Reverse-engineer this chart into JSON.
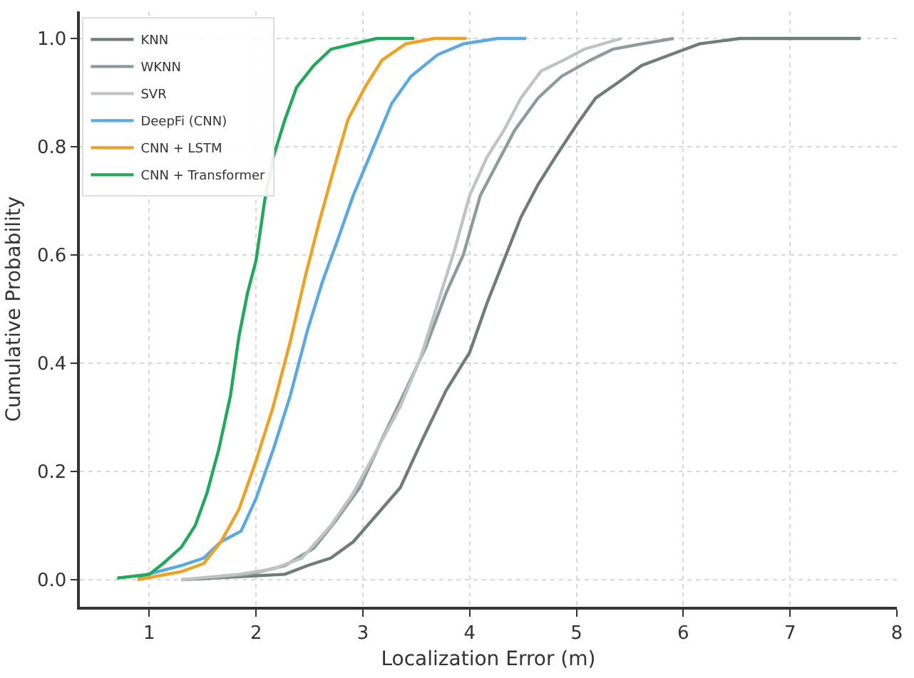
{
  "chart_data": {
    "type": "line",
    "xlabel": "Localization Error (m)",
    "ylabel": "Cumulative Probability",
    "xlim": [
      0.35,
      8
    ],
    "xticks": [
      1,
      2,
      3,
      4,
      5,
      6,
      7,
      8
    ],
    "ylim": [
      -0.05,
      1.05
    ],
    "yticks": [
      {
        "value": 0,
        "label": "0.0"
      },
      {
        "value": 0.2,
        "label": "0.2"
      },
      {
        "value": 0.4,
        "label": "0.4"
      },
      {
        "value": 0.6,
        "label": "0.6"
      },
      {
        "value": 0.8,
        "label": "0.8"
      },
      {
        "value": 1,
        "label": "1.0"
      }
    ],
    "grid": true,
    "legend": "top left",
    "marker": "none",
    "line_style": "solid",
    "series": [
      {
        "name": "KNN",
        "color": "#6f7c79",
        "x": [
          1.3,
          2.27,
          2.48,
          2.7,
          2.91,
          3.13,
          3.35,
          3.56,
          3.78,
          4.0,
          4.16,
          4.32,
          4.48,
          4.64,
          4.8,
          5.0,
          5.18,
          5.4,
          5.61,
          5.88,
          6.15,
          6.53,
          7.23,
          7.66
        ],
        "values": [
          0.0,
          0.01,
          0.026,
          0.04,
          0.07,
          0.12,
          0.17,
          0.26,
          0.35,
          0.42,
          0.51,
          0.59,
          0.67,
          0.73,
          0.78,
          0.84,
          0.89,
          0.92,
          0.95,
          0.97,
          0.99,
          1.0,
          1.0,
          1.0
        ]
      },
      {
        "name": "WKNN",
        "color": "#8d9b9b",
        "x": [
          1.57,
          1.94,
          2.27,
          2.54,
          2.75,
          2.97,
          3.18,
          3.4,
          3.59,
          3.78,
          3.94,
          4.1,
          4.26,
          4.42,
          4.64,
          4.86,
          5.13,
          5.34,
          5.61,
          5.91
        ],
        "values": [
          0.003,
          0.01,
          0.026,
          0.058,
          0.11,
          0.17,
          0.26,
          0.35,
          0.43,
          0.53,
          0.6,
          0.71,
          0.77,
          0.83,
          0.89,
          0.93,
          0.96,
          0.98,
          0.99,
          1.0
        ]
      },
      {
        "name": "SVR",
        "color": "#bfc3c3",
        "x": [
          1.3,
          1.84,
          2.16,
          2.43,
          2.7,
          2.91,
          3.13,
          3.35,
          3.54,
          3.7,
          3.86,
          4.0,
          4.16,
          4.32,
          4.48,
          4.67,
          4.88,
          5.07,
          5.42
        ],
        "values": [
          0.0,
          0.01,
          0.02,
          0.04,
          0.1,
          0.16,
          0.24,
          0.32,
          0.41,
          0.51,
          0.61,
          0.71,
          0.78,
          0.83,
          0.89,
          0.94,
          0.96,
          0.98,
          1.0
        ]
      },
      {
        "name": "DeepFi (CNN)",
        "color": "#5aa9e0",
        "x": [
          0.89,
          1.3,
          1.51,
          1.67,
          1.86,
          2.0,
          2.16,
          2.32,
          2.48,
          2.62,
          2.75,
          2.91,
          3.08,
          3.27,
          3.45,
          3.7,
          3.94,
          4.26,
          4.53
        ],
        "values": [
          0.005,
          0.026,
          0.04,
          0.07,
          0.09,
          0.15,
          0.24,
          0.34,
          0.46,
          0.55,
          0.62,
          0.71,
          0.79,
          0.88,
          0.93,
          0.97,
          0.99,
          1.0,
          1.0
        ]
      },
      {
        "name": "CNN + LSTM",
        "color": "#f0a022",
        "x": [
          0.89,
          1.3,
          1.51,
          1.67,
          1.84,
          2.0,
          2.16,
          2.32,
          2.46,
          2.59,
          2.73,
          2.86,
          3.02,
          3.18,
          3.4,
          3.67,
          3.97
        ],
        "values": [
          0.0,
          0.015,
          0.03,
          0.07,
          0.13,
          0.22,
          0.32,
          0.44,
          0.56,
          0.66,
          0.76,
          0.85,
          0.91,
          0.96,
          0.99,
          1.0,
          1.0
        ]
      },
      {
        "name": "CNN + Transformer",
        "color": "#22a85a",
        "x": [
          0.7,
          1.0,
          1.13,
          1.3,
          1.43,
          1.54,
          1.65,
          1.76,
          1.84,
          1.92,
          2.0,
          2.08,
          2.16,
          2.27,
          2.38,
          2.54,
          2.7,
          2.91,
          3.13,
          3.48
        ],
        "values": [
          0.003,
          0.01,
          0.03,
          0.06,
          0.1,
          0.16,
          0.24,
          0.34,
          0.45,
          0.53,
          0.59,
          0.7,
          0.78,
          0.85,
          0.91,
          0.95,
          0.98,
          0.99,
          1.0,
          1.0
        ]
      }
    ]
  }
}
